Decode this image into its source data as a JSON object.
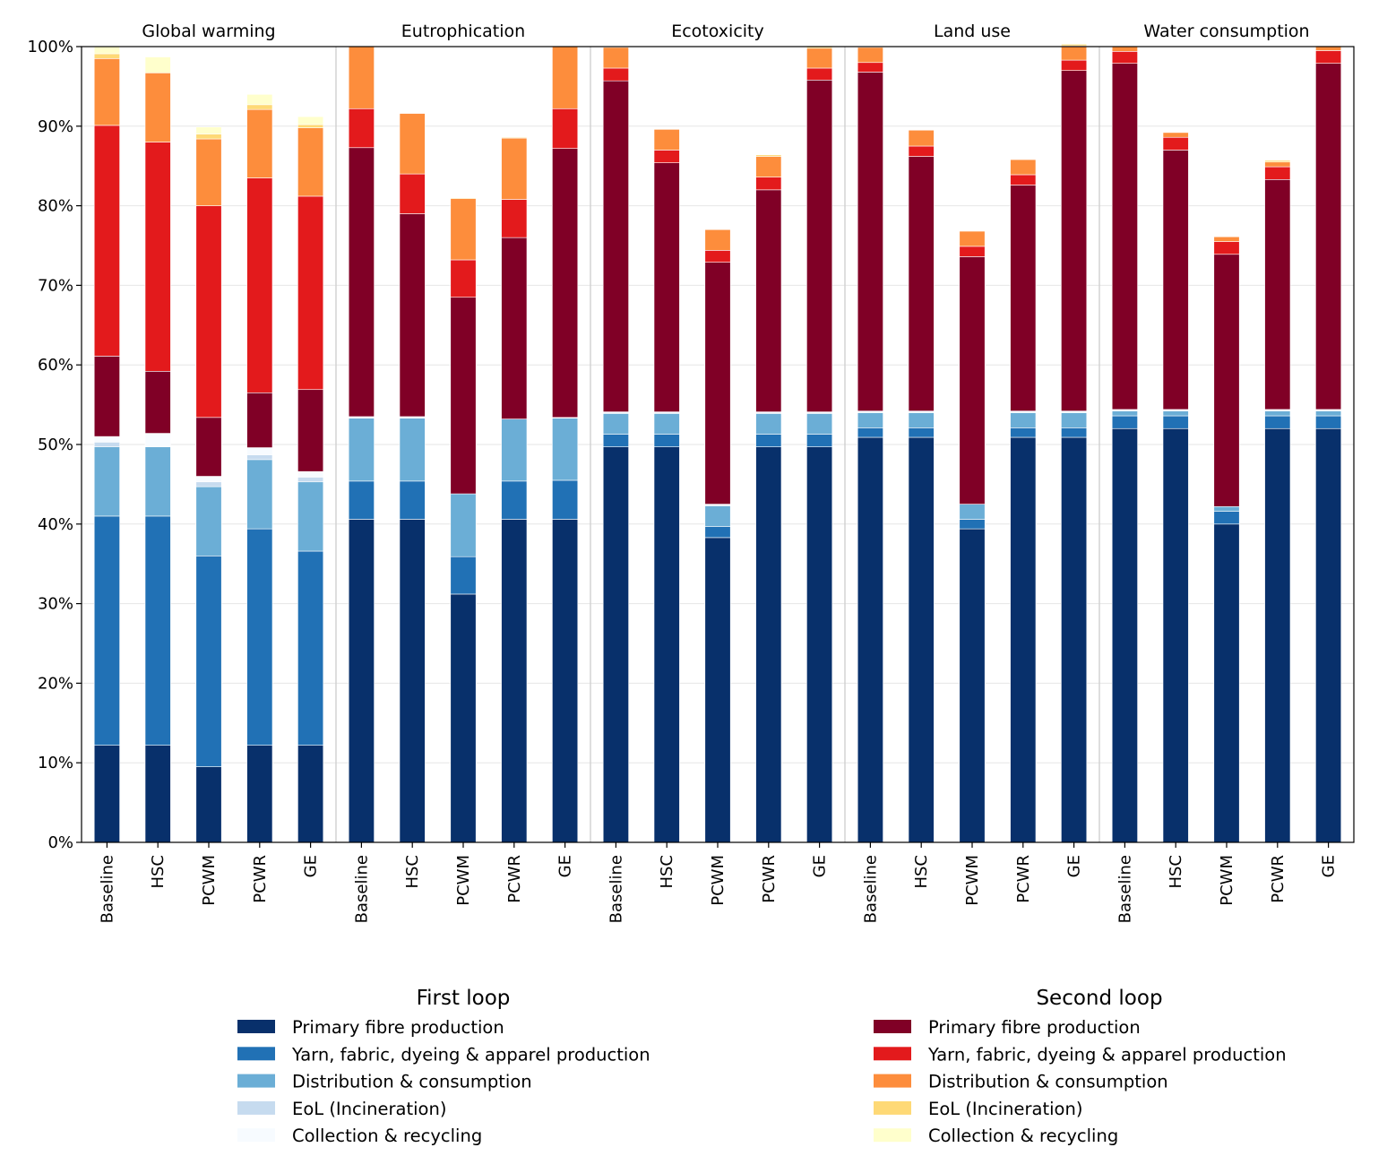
{
  "chart_data": {
    "type": "bar",
    "stacked": true,
    "title": "",
    "xlabel": "",
    "ylabel": "",
    "ylim": [
      0,
      100
    ],
    "y_unit": "%",
    "y_ticks": [
      "0%",
      "10%",
      "20%",
      "30%",
      "40%",
      "50%",
      "60%",
      "70%",
      "80%",
      "90%",
      "100%"
    ],
    "grid": "horizontal",
    "groups": [
      {
        "label": "Global warming",
        "scenarios": [
          {
            "label": "Baseline",
            "values": {
              "f_pfp": 12.2,
              "f_yarn": 28.8,
              "f_dist": 8.7,
              "f_eol": 0.6,
              "f_col": 0.7,
              "s_pfp": 10.1,
              "s_yarn": 29.0,
              "s_dist": 8.4,
              "s_eol": 0.6,
              "s_col": 0.9
            }
          },
          {
            "label": "HSC",
            "values": {
              "f_pfp": 12.2,
              "f_yarn": 28.8,
              "f_dist": 8.7,
              "f_eol": 0.0,
              "f_col": 1.7,
              "s_pfp": 7.8,
              "s_yarn": 28.8,
              "s_dist": 8.7,
              "s_eol": 0.0,
              "s_col": 2.0
            }
          },
          {
            "label": "PCWM",
            "values": {
              "f_pfp": 9.5,
              "f_yarn": 26.5,
              "f_dist": 8.7,
              "f_eol": 0.6,
              "f_col": 0.7,
              "s_pfp": 7.4,
              "s_yarn": 26.6,
              "s_dist": 8.4,
              "s_eol": 0.6,
              "s_col": 0.9
            }
          },
          {
            "label": "PCWR",
            "values": {
              "f_pfp": 12.2,
              "f_yarn": 27.2,
              "f_dist": 8.7,
              "f_eol": 0.6,
              "f_col": 0.9,
              "s_pfp": 6.9,
              "s_yarn": 27.0,
              "s_dist": 8.6,
              "s_eol": 0.6,
              "s_col": 1.3
            }
          },
          {
            "label": "GE",
            "values": {
              "f_pfp": 12.2,
              "f_yarn": 24.4,
              "f_dist": 8.7,
              "f_eol": 0.6,
              "f_col": 0.7,
              "s_pfp": 10.3,
              "s_yarn": 24.3,
              "s_dist": 8.6,
              "s_eol": 0.4,
              "s_col": 1.0
            }
          }
        ]
      },
      {
        "label": "Eutrophication",
        "scenarios": [
          {
            "label": "Baseline",
            "values": {
              "f_pfp": 40.6,
              "f_yarn": 4.8,
              "f_dist": 7.9,
              "f_eol": 0.0,
              "f_col": 0.2,
              "s_pfp": 33.8,
              "s_yarn": 4.9,
              "s_dist": 7.8,
              "s_eol": 0.0,
              "s_col": 0.0
            }
          },
          {
            "label": "HSC",
            "values": {
              "f_pfp": 40.6,
              "f_yarn": 4.8,
              "f_dist": 7.9,
              "f_eol": 0.0,
              "f_col": 0.2,
              "s_pfp": 25.5,
              "s_yarn": 5.0,
              "s_dist": 7.6,
              "s_eol": 0.0,
              "s_col": 0.0
            }
          },
          {
            "label": "PCWM",
            "values": {
              "f_pfp": 31.2,
              "f_yarn": 4.7,
              "f_dist": 7.9,
              "f_eol": 0.0,
              "f_col": 0.0,
              "s_pfp": 24.7,
              "s_yarn": 4.7,
              "s_dist": 7.7,
              "s_eol": 0.1,
              "s_col": 0.0
            }
          },
          {
            "label": "PCWR",
            "values": {
              "f_pfp": 40.6,
              "f_yarn": 4.8,
              "f_dist": 7.8,
              "f_eol": 0.0,
              "f_col": 0.0,
              "s_pfp": 22.8,
              "s_yarn": 4.8,
              "s_dist": 7.7,
              "s_eol": 0.1,
              "s_col": 0.0
            }
          },
          {
            "label": "GE",
            "values": {
              "f_pfp": 40.6,
              "f_yarn": 4.9,
              "f_dist": 7.8,
              "f_eol": 0.0,
              "f_col": 0.1,
              "s_pfp": 33.8,
              "s_yarn": 5.0,
              "s_dist": 7.8,
              "s_eol": 0.0,
              "s_col": 0.0
            }
          }
        ]
      },
      {
        "label": "Ecotoxicity",
        "scenarios": [
          {
            "label": "Baseline",
            "values": {
              "f_pfp": 49.7,
              "f_yarn": 1.6,
              "f_dist": 2.6,
              "f_eol": 0.0,
              "f_col": 0.2,
              "s_pfp": 41.6,
              "s_yarn": 1.6,
              "s_dist": 2.6,
              "s_eol": 0.0,
              "s_col": 0.0
            }
          },
          {
            "label": "HSC",
            "values": {
              "f_pfp": 49.7,
              "f_yarn": 1.6,
              "f_dist": 2.6,
              "f_eol": 0.0,
              "f_col": 0.2,
              "s_pfp": 31.3,
              "s_yarn": 1.6,
              "s_dist": 2.6,
              "s_eol": 0.0,
              "s_col": 0.0
            }
          },
          {
            "label": "PCWM",
            "values": {
              "f_pfp": 38.3,
              "f_yarn": 1.4,
              "f_dist": 2.6,
              "f_eol": 0.0,
              "f_col": 0.2,
              "s_pfp": 30.4,
              "s_yarn": 1.5,
              "s_dist": 2.6,
              "s_eol": 0.0,
              "s_col": 0.0
            }
          },
          {
            "label": "PCWR",
            "values": {
              "f_pfp": 49.7,
              "f_yarn": 1.6,
              "f_dist": 2.6,
              "f_eol": 0.0,
              "f_col": 0.2,
              "s_pfp": 27.9,
              "s_yarn": 1.6,
              "s_dist": 2.6,
              "s_eol": 0.2,
              "s_col": 0.0
            }
          },
          {
            "label": "GE",
            "values": {
              "f_pfp": 49.7,
              "f_yarn": 1.6,
              "f_dist": 2.6,
              "f_eol": 0.0,
              "f_col": 0.2,
              "s_pfp": 41.7,
              "s_yarn": 1.5,
              "s_dist": 2.5,
              "s_eol": 0.2,
              "s_col": 0.0
            }
          }
        ]
      },
      {
        "label": "Land use",
        "scenarios": [
          {
            "label": "Baseline",
            "values": {
              "f_pfp": 50.9,
              "f_yarn": 1.2,
              "f_dist": 1.9,
              "f_eol": 0.0,
              "f_col": 0.2,
              "s_pfp": 42.6,
              "s_yarn": 1.2,
              "s_dist": 1.9,
              "s_eol": 0.0,
              "s_col": 0.0
            }
          },
          {
            "label": "HSC",
            "values": {
              "f_pfp": 50.9,
              "f_yarn": 1.2,
              "f_dist": 1.9,
              "f_eol": 0.0,
              "f_col": 0.2,
              "s_pfp": 32.0,
              "s_yarn": 1.3,
              "s_dist": 2.0,
              "s_eol": 0.0,
              "s_col": 0.0
            }
          },
          {
            "label": "PCWM",
            "values": {
              "f_pfp": 39.4,
              "f_yarn": 1.2,
              "f_dist": 1.9,
              "f_eol": 0.0,
              "f_col": 0.0,
              "s_pfp": 31.1,
              "s_yarn": 1.3,
              "s_dist": 1.9,
              "s_eol": 0.0,
              "s_col": 0.0
            }
          },
          {
            "label": "PCWR",
            "values": {
              "f_pfp": 50.9,
              "f_yarn": 1.2,
              "f_dist": 1.9,
              "f_eol": 0.0,
              "f_col": 0.2,
              "s_pfp": 28.4,
              "s_yarn": 1.3,
              "s_dist": 1.9,
              "s_eol": 0.0,
              "s_col": 0.0
            }
          },
          {
            "label": "GE",
            "values": {
              "f_pfp": 50.9,
              "f_yarn": 1.2,
              "f_dist": 1.9,
              "f_eol": 0.0,
              "f_col": 0.2,
              "s_pfp": 42.8,
              "s_yarn": 1.3,
              "s_dist": 1.8,
              "s_eol": 0.2,
              "s_col": 0.0
            }
          }
        ]
      },
      {
        "label": "Water consumption",
        "scenarios": [
          {
            "label": "Baseline",
            "values": {
              "f_pfp": 52.0,
              "f_yarn": 1.6,
              "f_dist": 0.6,
              "f_eol": 0.0,
              "f_col": 0.2,
              "s_pfp": 43.5,
              "s_yarn": 1.5,
              "s_dist": 0.6,
              "s_eol": 0.0,
              "s_col": 0.0
            }
          },
          {
            "label": "HSC",
            "values": {
              "f_pfp": 52.0,
              "f_yarn": 1.6,
              "f_dist": 0.6,
              "f_eol": 0.0,
              "f_col": 0.2,
              "s_pfp": 32.6,
              "s_yarn": 1.6,
              "s_dist": 0.6,
              "s_eol": 0.0,
              "s_col": 0.0
            }
          },
          {
            "label": "PCWM",
            "values": {
              "f_pfp": 40.0,
              "f_yarn": 1.6,
              "f_dist": 0.6,
              "f_eol": 0.0,
              "f_col": 0.0,
              "s_pfp": 31.7,
              "s_yarn": 1.6,
              "s_dist": 0.6,
              "s_eol": 0.0,
              "s_col": 0.0
            }
          },
          {
            "label": "PCWR",
            "values": {
              "f_pfp": 52.0,
              "f_yarn": 1.6,
              "f_dist": 0.6,
              "f_eol": 0.0,
              "f_col": 0.2,
              "s_pfp": 28.9,
              "s_yarn": 1.6,
              "s_dist": 0.6,
              "s_eol": 0.2,
              "s_col": 0.0
            }
          },
          {
            "label": "GE",
            "values": {
              "f_pfp": 52.0,
              "f_yarn": 1.6,
              "f_dist": 0.6,
              "f_eol": 0.0,
              "f_col": 0.2,
              "s_pfp": 43.5,
              "s_yarn": 1.6,
              "s_dist": 0.6,
              "s_eol": 0.0,
              "s_col": 0.0
            }
          }
        ]
      }
    ],
    "series": [
      {
        "key": "f_pfp",
        "loop": "First loop",
        "name": "Primary fibre production",
        "color": "#08306b"
      },
      {
        "key": "f_yarn",
        "loop": "First loop",
        "name": "Yarn, fabric, dyeing & apparel production",
        "color": "#2171b5"
      },
      {
        "key": "f_dist",
        "loop": "First loop",
        "name": "Distribution & consumption",
        "color": "#6baed6"
      },
      {
        "key": "f_eol",
        "loop": "First loop",
        "name": "EoL (Incineration)",
        "color": "#c6dbef"
      },
      {
        "key": "f_col",
        "loop": "First loop",
        "name": "Collection & recycling",
        "color": "#f7fbff"
      },
      {
        "key": "s_pfp",
        "loop": "Second loop",
        "name": "Primary fibre production",
        "color": "#800026"
      },
      {
        "key": "s_yarn",
        "loop": "Second loop",
        "name": "Yarn, fabric, dyeing & apparel production",
        "color": "#e31a1c"
      },
      {
        "key": "s_dist",
        "loop": "Second loop",
        "name": "Distribution & consumption",
        "color": "#fd8d3c"
      },
      {
        "key": "s_eol",
        "loop": "Second loop",
        "name": "EoL (Incineration)",
        "color": "#fed976"
      },
      {
        "key": "s_col",
        "loop": "Second loop",
        "name": "Collection & recycling",
        "color": "#ffffcc"
      }
    ],
    "legend": {
      "placement": "bottom",
      "titles": [
        "First loop",
        "Second loop"
      ]
    }
  }
}
